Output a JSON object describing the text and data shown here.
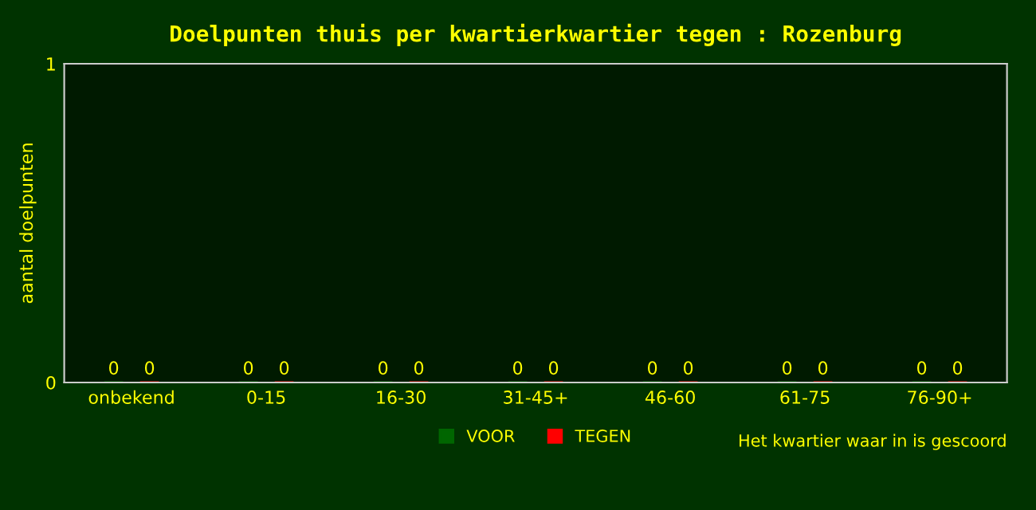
{
  "chart_data": {
    "type": "bar",
    "title": "Doelpunten thuis per kwartierkwartier tegen : Rozenburg",
    "xlabel": "Het kwartier waar in is gescoord",
    "ylabel": "aantal doelpunten",
    "categories": [
      "onbekend",
      "0-15",
      "16-30",
      "31-45+",
      "46-60",
      "61-75",
      "76-90+"
    ],
    "series": [
      {
        "name": "VOOR",
        "color": "#006600",
        "values": [
          0,
          0,
          0,
          0,
          0,
          0,
          0
        ]
      },
      {
        "name": "TEGEN",
        "color": "#ff0000",
        "values": [
          0,
          0,
          0,
          0,
          0,
          0,
          0
        ]
      }
    ],
    "ylim": [
      0,
      1
    ],
    "yticks": [
      0,
      1
    ],
    "data_labels": true,
    "legend": "bottom",
    "grid": false
  }
}
